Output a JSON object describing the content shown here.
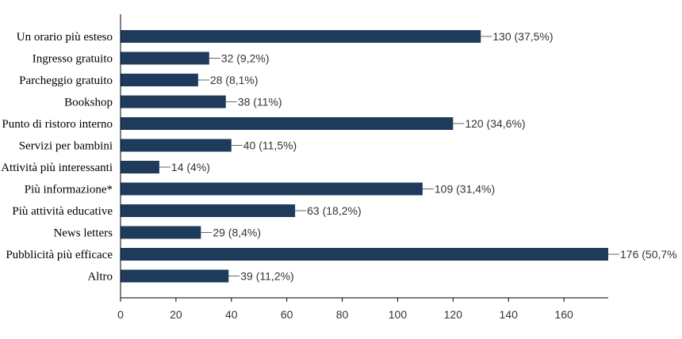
{
  "chart_data": {
    "type": "bar",
    "orientation": "horizontal",
    "title": "",
    "xlabel": "",
    "ylabel": "",
    "xlim": [
      0,
      176
    ],
    "x_ticks": [
      0,
      20,
      40,
      60,
      80,
      100,
      120,
      140,
      160
    ],
    "grid": false,
    "legend": "none",
    "bar_color": "#1f3b5c",
    "categories": [
      "Un orario più esteso",
      "Ingresso gratuito",
      "Parcheggio gratuito",
      "Bookshop",
      "Punto di ristoro interno",
      "Servizi per bambini",
      "Attività più interessanti",
      "Più informazione*",
      "Più attività educative",
      "News letters",
      "Pubblicità più efficace",
      "Altro"
    ],
    "values": [
      130,
      32,
      28,
      38,
      120,
      40,
      14,
      109,
      63,
      29,
      176,
      39
    ],
    "value_labels": [
      "130 (37,5%)",
      "32 (9,2%)",
      "28 (8,1%)",
      "38 (11%)",
      "120 (34,6%)",
      "40 (11,5%)",
      "14 (4%)",
      "109 (31,4%)",
      "63 (18,2%)",
      "29 (8,4%)",
      "176 (50,7%",
      "39 (11,2%)"
    ]
  }
}
